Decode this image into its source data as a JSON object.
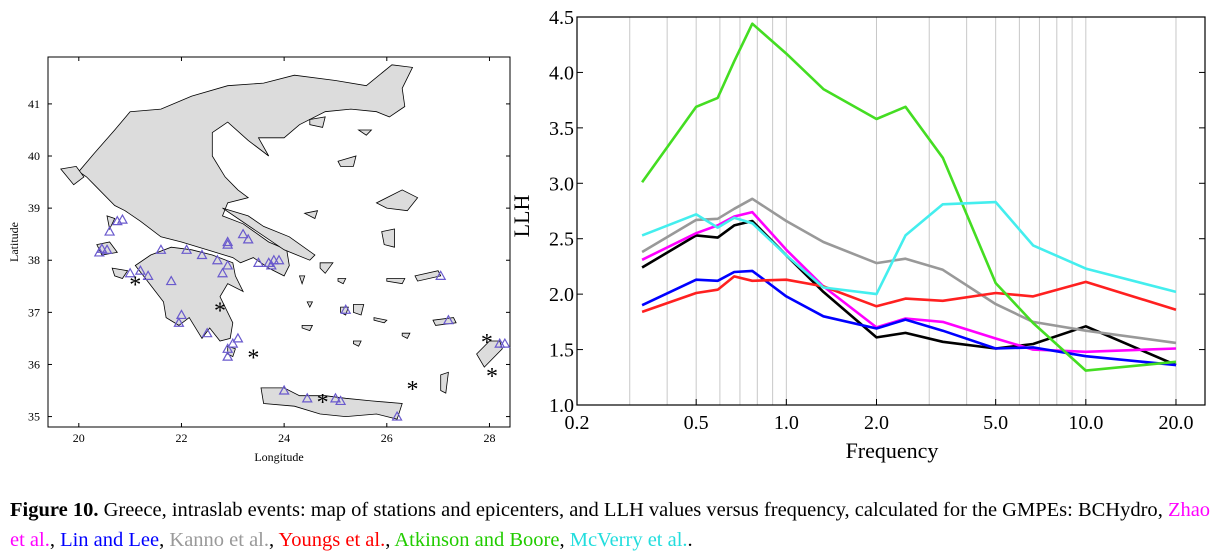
{
  "map": {
    "xlabel": "Longitude",
    "ylabel": "Latitude",
    "x_ticks": [
      "20",
      "22",
      "24",
      "26",
      "28"
    ],
    "y_ticks": [
      "35",
      "36",
      "37",
      "38",
      "39",
      "40",
      "41"
    ],
    "xlim": [
      19.4,
      28.4
    ],
    "ylim": [
      34.8,
      41.9
    ],
    "colors": {
      "land": "#dcdcdc",
      "outline": "#000000",
      "station": "#6a5acd"
    },
    "stations": [
      [
        20.75,
        38.75
      ],
      [
        20.85,
        38.78
      ],
      [
        20.6,
        38.55
      ],
      [
        20.45,
        38.22
      ],
      [
        20.4,
        38.15
      ],
      [
        20.55,
        38.2
      ],
      [
        21.6,
        38.2
      ],
      [
        22.1,
        38.2
      ],
      [
        22.7,
        38.0
      ],
      [
        22.4,
        38.1
      ],
      [
        22.9,
        38.35
      ],
      [
        23.2,
        38.5
      ],
      [
        22.9,
        37.9
      ],
      [
        23.5,
        37.95
      ],
      [
        23.7,
        37.95
      ],
      [
        23.8,
        38.0
      ],
      [
        23.75,
        37.9
      ],
      [
        23.9,
        38.0
      ],
      [
        22.8,
        37.75
      ],
      [
        21.0,
        37.75
      ],
      [
        21.35,
        37.7
      ],
      [
        21.2,
        37.8
      ],
      [
        21.8,
        37.6
      ],
      [
        22.0,
        36.95
      ],
      [
        21.95,
        36.8
      ],
      [
        22.5,
        36.6
      ],
      [
        22.9,
        36.3
      ],
      [
        22.9,
        36.15
      ],
      [
        23.0,
        36.4
      ],
      [
        23.1,
        36.5
      ],
      [
        24.0,
        35.5
      ],
      [
        24.45,
        35.35
      ],
      [
        25.0,
        35.35
      ],
      [
        25.1,
        35.3
      ],
      [
        26.2,
        35.0
      ],
      [
        25.2,
        37.05
      ],
      [
        27.2,
        36.85
      ],
      [
        27.05,
        37.7
      ],
      [
        28.2,
        36.4
      ],
      [
        28.3,
        36.4
      ],
      [
        22.9,
        38.3
      ],
      [
        23.3,
        38.4
      ]
    ],
    "epicenters": [
      [
        21.1,
        37.55
      ],
      [
        22.75,
        37.05
      ],
      [
        23.4,
        36.15
      ],
      [
        24.75,
        35.3
      ],
      [
        26.5,
        35.55
      ],
      [
        27.95,
        36.45
      ],
      [
        28.05,
        35.8
      ]
    ]
  },
  "chart_data": {
    "type": "line",
    "xlabel": "Frequency",
    "ylabel": "LLH",
    "xscale": "log",
    "xlim": [
      0.2,
      25
    ],
    "ylim": [
      1.0,
      4.5
    ],
    "x_ticks": [
      0.2,
      0.5,
      1.0,
      2.0,
      5.0,
      10.0,
      20.0
    ],
    "x_tick_labels": [
      "0.2",
      "0.5",
      "1.0",
      "2.0",
      "5.0",
      "10.0",
      "20.0"
    ],
    "y_ticks": [
      1.0,
      1.5,
      2.0,
      2.5,
      3.0,
      3.5,
      4.0,
      4.5
    ],
    "y_tick_labels": [
      "1.0",
      "1.5",
      "2.0",
      "2.5",
      "3.0",
      "3.5",
      "4.0",
      "4.5"
    ],
    "grid": true,
    "series": [
      {
        "name": "BCHydro",
        "color": "#000000",
        "x": [
          0.33,
          0.5,
          0.59,
          0.67,
          0.77,
          1.0,
          1.33,
          2.0,
          2.5,
          3.33,
          5.0,
          6.67,
          10.0,
          20.0
        ],
        "y": [
          2.24,
          2.53,
          2.51,
          2.62,
          2.66,
          2.35,
          2.02,
          1.61,
          1.65,
          1.57,
          1.51,
          1.55,
          1.71,
          1.36
        ]
      },
      {
        "name": "Zhao et al.",
        "color": "#ff00ff",
        "x": [
          0.33,
          0.5,
          0.59,
          0.67,
          0.77,
          1.0,
          1.33,
          2.0,
          2.5,
          3.33,
          5.0,
          6.67,
          10.0,
          20.0
        ],
        "y": [
          2.31,
          2.55,
          2.62,
          2.7,
          2.74,
          2.4,
          2.07,
          1.7,
          1.78,
          1.75,
          1.6,
          1.5,
          1.48,
          1.51
        ]
      },
      {
        "name": "Lin and Lee",
        "color": "#0000ff",
        "x": [
          0.33,
          0.5,
          0.59,
          0.67,
          0.77,
          1.0,
          1.33,
          2.0,
          2.5,
          3.33,
          5.0,
          6.67,
          10.0,
          20.0
        ],
        "y": [
          1.9,
          2.13,
          2.12,
          2.2,
          2.21,
          1.98,
          1.8,
          1.69,
          1.77,
          1.67,
          1.51,
          1.52,
          1.44,
          1.36
        ]
      },
      {
        "name": "Kanno et al.",
        "color": "#999999",
        "x": [
          0.33,
          0.5,
          0.59,
          0.67,
          0.77,
          1.0,
          1.33,
          2.0,
          2.5,
          3.33,
          5.0,
          6.67,
          10.0,
          20.0
        ],
        "y": [
          2.38,
          2.67,
          2.68,
          2.77,
          2.86,
          2.66,
          2.47,
          2.28,
          2.32,
          2.22,
          1.91,
          1.75,
          1.67,
          1.56
        ]
      },
      {
        "name": "Youngs et al.",
        "color": "#ff2020",
        "x": [
          0.33,
          0.5,
          0.59,
          0.67,
          0.77,
          1.0,
          1.33,
          2.0,
          2.5,
          3.33,
          5.0,
          6.67,
          10.0,
          20.0
        ],
        "y": [
          1.84,
          2.01,
          2.04,
          2.16,
          2.12,
          2.13,
          2.07,
          1.89,
          1.96,
          1.94,
          2.01,
          1.98,
          2.11,
          1.86
        ]
      },
      {
        "name": "Atkinson and Boore",
        "color": "#44dd22",
        "x": [
          0.33,
          0.5,
          0.59,
          0.67,
          0.77,
          1.0,
          1.33,
          2.0,
          2.5,
          3.33,
          5.0,
          6.67,
          10.0,
          20.0
        ],
        "y": [
          3.01,
          3.69,
          3.77,
          4.1,
          4.44,
          4.17,
          3.85,
          3.58,
          3.69,
          3.23,
          2.1,
          1.74,
          1.31,
          1.39
        ]
      },
      {
        "name": "McVerry et al.",
        "color": "#44eeee",
        "x": [
          0.33,
          0.5,
          0.59,
          0.67,
          0.77,
          1.0,
          1.33,
          2.0,
          2.5,
          3.33,
          5.0,
          6.67,
          10.0,
          20.0
        ],
        "y": [
          2.53,
          2.72,
          2.6,
          2.69,
          2.64,
          2.35,
          2.06,
          2.0,
          2.53,
          2.81,
          2.83,
          2.44,
          2.23,
          2.02
        ]
      }
    ]
  },
  "caption": {
    "label": "Figure 10.",
    "text": " Greece, intraslab events: map of stations and epicenters, and LLH values versus frequency, calculated for the GMPEs: ",
    "models": [
      {
        "name": "BCHydro",
        "color": "#000000"
      },
      {
        "name": "Zhao et al.",
        "color": "#ff00ff"
      },
      {
        "name": "Lin and Lee",
        "color": "#0000ff"
      },
      {
        "name": "Kanno et al.",
        "color": "#999999"
      },
      {
        "name": "Youngs et al.",
        "color": "#ff0000"
      },
      {
        "name": "Atkinson and Boore",
        "color": "#22cc00"
      },
      {
        "name": "McVerry et al.",
        "color": "#22dddd"
      }
    ],
    "separator": ", ",
    "end": "."
  }
}
